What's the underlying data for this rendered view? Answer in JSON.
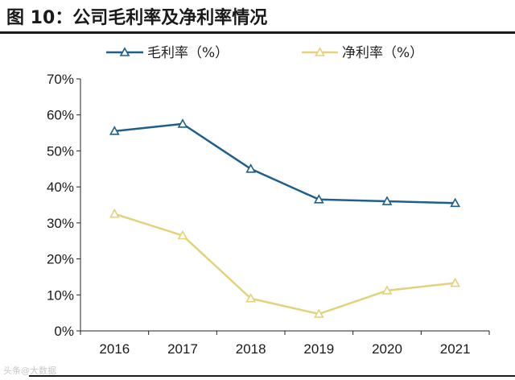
{
  "title": "图 10：公司毛利率及净利率情况",
  "watermark": "头条@大数据",
  "chart_data": {
    "type": "line",
    "title": "图 10：公司毛利率及净利率情况",
    "xlabel": "",
    "ylabel": "",
    "categories": [
      "2016",
      "2017",
      "2018",
      "2019",
      "2020",
      "2021"
    ],
    "ylim": [
      0,
      70
    ],
    "yticks": [
      "0%",
      "10%",
      "20%",
      "30%",
      "40%",
      "50%",
      "60%",
      "70%"
    ],
    "legend_position": "top",
    "series": [
      {
        "name": "毛利率（%）",
        "color": "#1f5f8b",
        "values": [
          55.5,
          57.5,
          45.0,
          36.5,
          36.0,
          35.5
        ]
      },
      {
        "name": "净利率（%）",
        "color": "#e3d27a",
        "values": [
          32.5,
          26.5,
          9.0,
          4.7,
          11.2,
          13.3
        ]
      }
    ]
  }
}
